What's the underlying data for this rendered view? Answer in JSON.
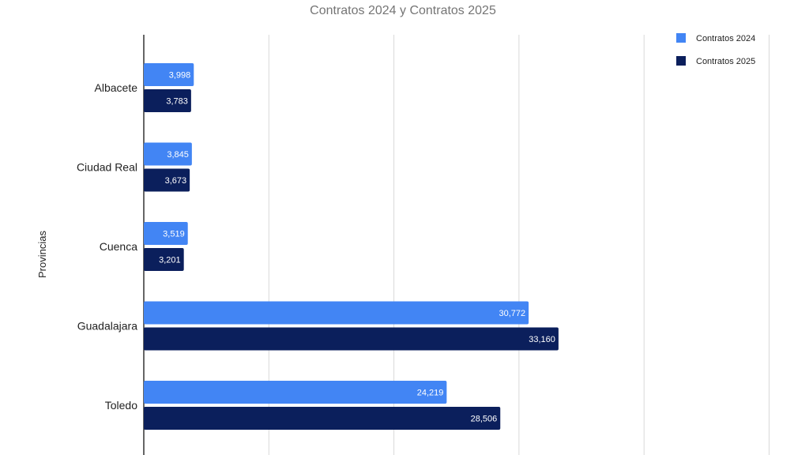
{
  "chart_data": {
    "type": "bar",
    "orientation": "horizontal",
    "title": "Contratos 2024 y Contratos 2025",
    "ylabel": "Provincias",
    "xlabel": "",
    "categories": [
      "Albacete",
      "Ciudad Real",
      "Cuenca",
      "Guadalajara",
      "Toledo"
    ],
    "series": [
      {
        "name": "Contratos 2024",
        "color": "#4285f4",
        "values": [
          3998,
          3845,
          3519,
          30772,
          24219
        ],
        "labels": [
          "3,998",
          "3,845",
          "3,519",
          "30,772",
          "24,219"
        ]
      },
      {
        "name": "Contratos 2025",
        "color": "#0b1f5c",
        "values": [
          3783,
          3673,
          3201,
          33160,
          28506
        ],
        "labels": [
          "3,783",
          "3,673",
          "3,201",
          "33,160",
          "28,506"
        ]
      }
    ],
    "xlim": [
      0,
      50000
    ],
    "grid": true,
    "legend": "top-right"
  }
}
